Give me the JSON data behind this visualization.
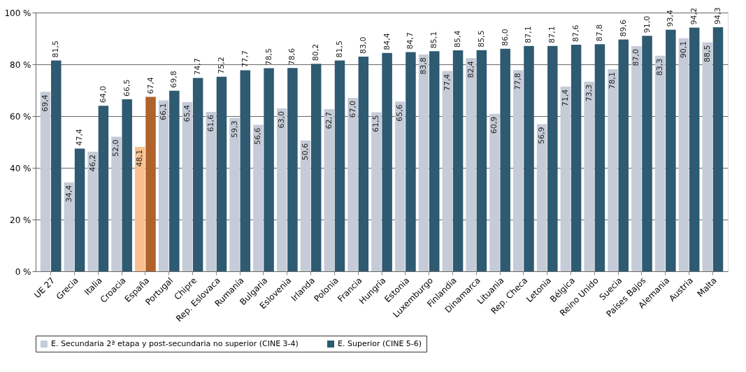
{
  "chart_data": {
    "type": "bar",
    "categories": [
      "UE 27",
      "Grecia",
      "Italia",
      "Croacia",
      "España",
      "Portugal",
      "Chipre",
      "Rep. Eslovaca",
      "Rumanía",
      "Bulgaria",
      "Eslovenia",
      "Irlanda",
      "Polonia",
      "Francia",
      "Hungría",
      "Estonia",
      "Luxemburgo",
      "Finlandia",
      "Dinamarca",
      "Lituania",
      "Rep. Checa",
      "Letonia",
      "Bélgica",
      "Reino Unido",
      "Suecia",
      "Países Bajos",
      "Alemania",
      "Austria",
      "Malta"
    ],
    "series": [
      {
        "name": "E. Secundaria 2ª etapa y post-secundaria no superior (CINE 3-4)",
        "color": "#c5ccd8",
        "colors": [
          "#c5ccd8",
          "#c5ccd8",
          "#c5ccd8",
          "#c5ccd8",
          "#f8c08f",
          "#c5ccd8",
          "#c5ccd8",
          "#c5ccd8",
          "#c5ccd8",
          "#c5ccd8",
          "#c5ccd8",
          "#c5ccd8",
          "#c5ccd8",
          "#c5ccd8",
          "#c5ccd8",
          "#c5ccd8",
          "#c5ccd8",
          "#c5ccd8",
          "#c5ccd8",
          "#c5ccd8",
          "#c5ccd8",
          "#c5ccd8",
          "#c5ccd8",
          "#c5ccd8",
          "#c5ccd8",
          "#c5ccd8",
          "#c5ccd8",
          "#c5ccd8",
          "#c5ccd8"
        ],
        "values": [
          69.4,
          34.4,
          46.2,
          52.0,
          48.1,
          66.1,
          65.4,
          61.6,
          59.3,
          56.6,
          63.0,
          50.6,
          62.7,
          67.0,
          61.5,
          65.6,
          83.8,
          77.4,
          82.4,
          60.9,
          77.8,
          56.9,
          71.4,
          73.3,
          78.1,
          87.0,
          83.3,
          90.1,
          88.5
        ],
        "value_labels": [
          "69,4",
          "34,4",
          "46,2",
          "52,0",
          "48,1",
          "66,1",
          "65,4",
          "61,6",
          "59,3",
          "56,6",
          "63,0",
          "50,6",
          "62,7",
          "67,0",
          "61,5",
          "65,6",
          "83,8",
          "77,4",
          "82,4",
          "60,9",
          "77,8",
          "56,9",
          "71,4",
          "73,3",
          "78,1",
          "87,0",
          "83,3",
          "90,1",
          "88,5"
        ]
      },
      {
        "name": "E. Superior (CINE 5-6)",
        "color": "#2e5a72",
        "colors": [
          "#2e5a72",
          "#2e5a72",
          "#2e5a72",
          "#2e5a72",
          "#b0622a",
          "#2e5a72",
          "#2e5a72",
          "#2e5a72",
          "#2e5a72",
          "#2e5a72",
          "#2e5a72",
          "#2e5a72",
          "#2e5a72",
          "#2e5a72",
          "#2e5a72",
          "#2e5a72",
          "#2e5a72",
          "#2e5a72",
          "#2e5a72",
          "#2e5a72",
          "#2e5a72",
          "#2e5a72",
          "#2e5a72",
          "#2e5a72",
          "#2e5a72",
          "#2e5a72",
          "#2e5a72",
          "#2e5a72",
          "#2e5a72"
        ],
        "values": [
          81.5,
          47.4,
          64.0,
          66.5,
          67.4,
          69.8,
          74.7,
          75.2,
          77.7,
          78.5,
          78.6,
          80.2,
          81.5,
          83.0,
          84.4,
          84.7,
          85.1,
          85.4,
          85.5,
          86.0,
          87.1,
          87.1,
          87.6,
          87.8,
          89.6,
          91.0,
          93.4,
          94.2,
          94.3
        ],
        "value_labels": [
          "81,5",
          "47,4",
          "64,0",
          "66,5",
          "67,4",
          "69,8",
          "74,7",
          "75,2",
          "77,7",
          "78,5",
          "78,6",
          "80,2",
          "81,5",
          "83,0",
          "84,4",
          "84,7",
          "85,1",
          "85,4",
          "85,5",
          "86,0",
          "87,1",
          "87,1",
          "87,6",
          "87,8",
          "89,6",
          "91,0",
          "93,4",
          "94,2",
          "94,3"
        ]
      }
    ],
    "ylim": [
      0,
      100
    ],
    "yticks": [
      {
        "value": 0,
        "label": "0 %"
      },
      {
        "value": 20,
        "label": "20 %"
      },
      {
        "value": 40,
        "label": "40 %"
      },
      {
        "value": 60,
        "label": "60 %"
      },
      {
        "value": 80,
        "label": "80 %"
      },
      {
        "value": 100,
        "label": "100 %"
      }
    ],
    "grid": "y",
    "legend": "bottom"
  }
}
